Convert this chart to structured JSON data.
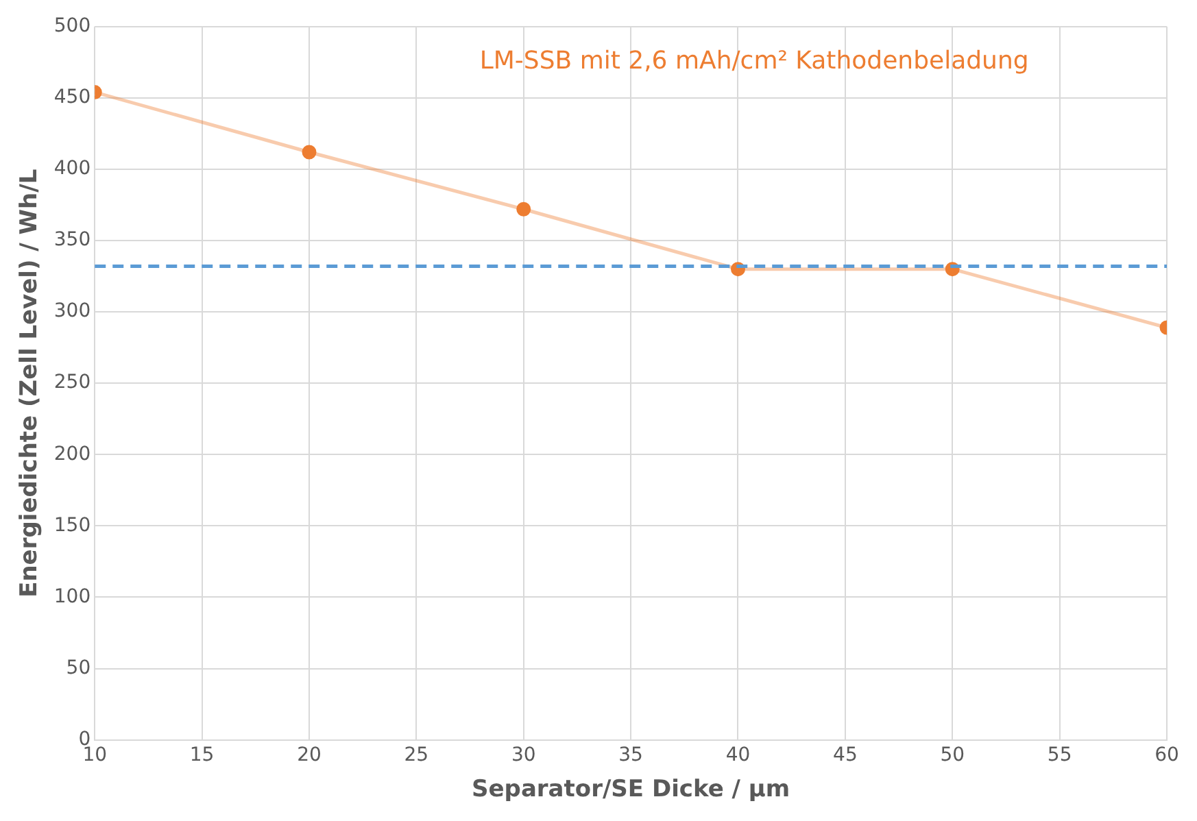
{
  "chart_data": {
    "type": "line",
    "xlabel": "Separator/SE Dicke / µm",
    "ylabel": "Energiedichte (Zell Level) / Wh/L",
    "x": [
      10,
      20,
      30,
      40,
      50,
      60
    ],
    "series": [
      {
        "name": "LM-SSB mit 2,6 mAh/cm² Kathodenbeladung",
        "color": "#ed7d31",
        "values": [
          454,
          412,
          372,
          330,
          330,
          289
        ]
      }
    ],
    "xlim": [
      10,
      60
    ],
    "xticks": [
      10,
      15,
      20,
      25,
      30,
      35,
      40,
      45,
      50,
      55,
      60
    ],
    "ylim": [
      0,
      500
    ],
    "yticks": [
      0,
      50,
      100,
      150,
      200,
      250,
      300,
      350,
      400,
      450,
      500
    ],
    "ref_lines": [
      {
        "axis": "y",
        "value": 332,
        "color": "#5b9bd5",
        "line_style": "dashed"
      }
    ],
    "grid": true,
    "marker": "circle",
    "line_style": "solid"
  }
}
